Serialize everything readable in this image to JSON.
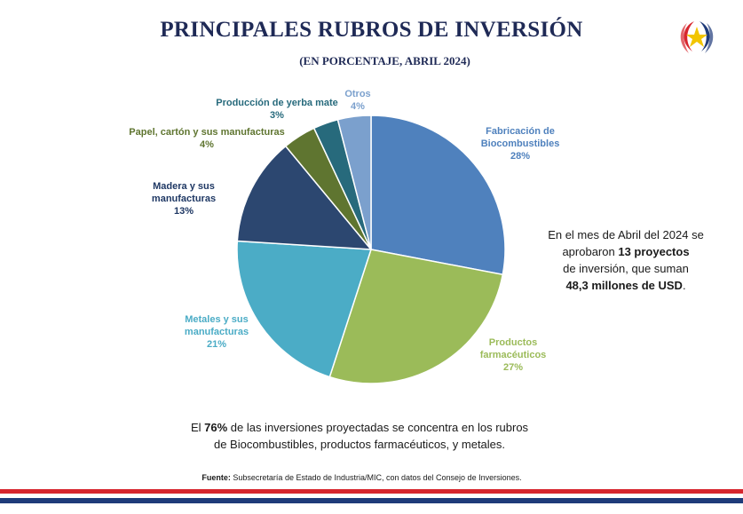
{
  "title": "PRINCIPALES RUBROS DE INVERSIÓN",
  "subtitle": "(EN PORCENTAJE, ABRIL 2024)",
  "chart_data": {
    "type": "pie",
    "slices": [
      {
        "label": [
          "Fabricación de",
          "Biocombustibles"
        ],
        "value": 28,
        "display": "28%",
        "color": "#4f81bd"
      },
      {
        "label": [
          "Productos",
          "farmacéuticos"
        ],
        "value": 27,
        "display": "27%",
        "color": "#9bbb59"
      },
      {
        "label": [
          "Metales y sus",
          "manufacturas"
        ],
        "value": 21,
        "display": "21%",
        "color": "#4bacc6"
      },
      {
        "label": [
          "Madera y sus",
          "manufacturas"
        ],
        "value": 13,
        "display": "13%",
        "color": "#2c4770"
      },
      {
        "label": [
          "Papel, cartón y sus manufacturas"
        ],
        "value": 4,
        "display": "4%",
        "color": "#5f7530"
      },
      {
        "label": [
          "Producción de yerba mate"
        ],
        "value": 3,
        "display": "3%",
        "color": "#276a7c"
      },
      {
        "label": [
          "Otros"
        ],
        "value": 4,
        "display": "4%",
        "color": "#7ba0cd"
      }
    ],
    "label_colors": [
      "#4f81bd",
      "#9bbb59",
      "#4bacc6",
      "#1f3864",
      "#5f7530",
      "#276a7c",
      "#7ba0cd"
    ]
  },
  "side_text": {
    "line1": "En el mes de Abril del 2024 se",
    "line2_pre": "aprobaron ",
    "line2_bold": "13 proyectos",
    "line3": "de inversión, que suman",
    "line4_bold": "48,3 millones de USD",
    "line4_post": "."
  },
  "bottom_text": {
    "pre": "El ",
    "bold": "76%",
    "post": " de las inversiones proyectadas se concentra en los rubros",
    "line2": "de Biocombustibles, productos farmacéuticos, y metales."
  },
  "source": {
    "label": "Fuente:",
    "text": " Subsecretaría de Estado de Industria/MIC, con datos del Consejo de Inversiones."
  },
  "colors": {
    "title": "#1f2a56",
    "stripe_red": "#d7262e",
    "stripe_blue": "#1f3b7a"
  },
  "logo_icon": "paraguay-star-emblem-icon"
}
